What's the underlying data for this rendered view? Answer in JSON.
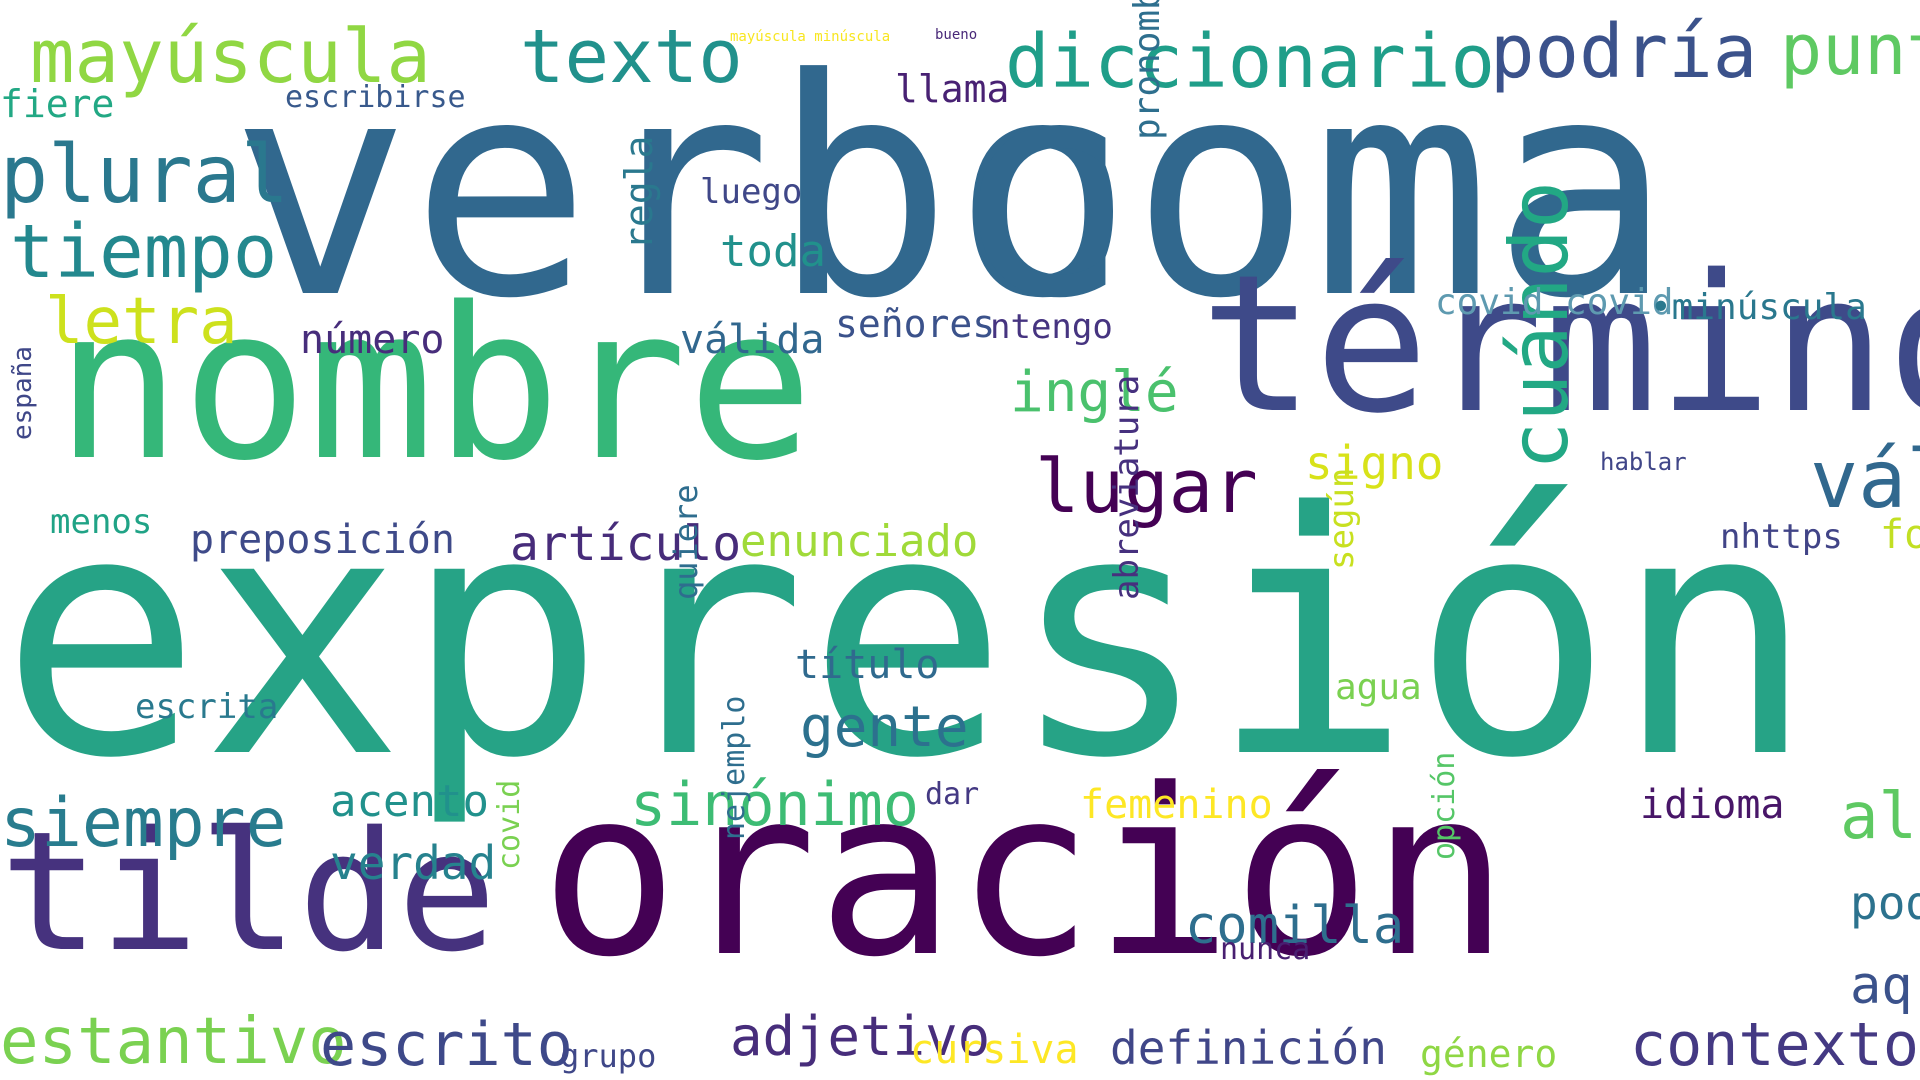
{
  "cloud": {
    "words": [
      {
        "text": "verbo",
        "color": "#31688e"
      },
      {
        "text": "coma",
        "color": "#31688e"
      },
      {
        "text": "nombre",
        "color": "#35b779"
      },
      {
        "text": "término",
        "color": "#3e4a89"
      },
      {
        "text": "expresión",
        "color": "#26a386"
      },
      {
        "text": "oración",
        "color": "#440154"
      },
      {
        "text": "tilde",
        "color": "#46327e"
      },
      {
        "text": "mayúscula",
        "color": "#90d743"
      },
      {
        "text": "texto",
        "color": "#21918c"
      },
      {
        "text": "diccionario",
        "color": "#1f9e89"
      },
      {
        "text": "podría",
        "color": "#3b528b"
      },
      {
        "text": "punt",
        "color": "#5ec962"
      },
      {
        "text": "plural",
        "color": "#2a788e"
      },
      {
        "text": "tiempo",
        "color": "#23888e"
      },
      {
        "text": "letra",
        "color": "#cde11d"
      },
      {
        "text": "lugar",
        "color": "#440154"
      },
      {
        "text": "váli",
        "color": "#31688e"
      },
      {
        "text": "inglé",
        "color": "#4ac16d"
      },
      {
        "text": "signo",
        "color": "#d8e219"
      },
      {
        "text": "cuándo",
        "color": "#22a884"
      },
      {
        "text": "siempre",
        "color": "#287c8e"
      },
      {
        "text": "sinónimo",
        "color": "#3dbc74"
      },
      {
        "text": "estantivo",
        "color": "#7ad151"
      },
      {
        "text": "escrito",
        "color": "#3e4989"
      },
      {
        "text": "adjetivo",
        "color": "#472d7b"
      },
      {
        "text": "contexto",
        "color": "#443983"
      },
      {
        "text": "definición",
        "color": "#404688"
      },
      {
        "text": "artículo",
        "color": "#472c7a"
      },
      {
        "text": "enunciado",
        "color": "#a0da39"
      },
      {
        "text": "preposición",
        "color": "#3e4a89"
      },
      {
        "text": "gente",
        "color": "#2c718e"
      },
      {
        "text": "acento",
        "color": "#21918c"
      },
      {
        "text": "verdad",
        "color": "#26828e"
      },
      {
        "text": "femenino",
        "color": "#fde725"
      },
      {
        "text": "idioma",
        "color": "#481668"
      },
      {
        "text": "comilla",
        "color": "#2e6e8e"
      },
      {
        "text": "alg",
        "color": "#5ec962"
      },
      {
        "text": "aq",
        "color": "#3b528b"
      },
      {
        "text": "pod",
        "color": "#2c728e"
      },
      {
        "text": "género",
        "color": "#8fd744"
      },
      {
        "text": "cursiva",
        "color": "#fde725"
      },
      {
        "text": "grupo",
        "color": "#3f4788"
      },
      {
        "text": "título",
        "color": "#306a8e"
      },
      {
        "text": "escrita",
        "color": "#29798e"
      },
      {
        "text": "agua",
        "color": "#7ad151"
      },
      {
        "text": "número",
        "color": "#472d7b"
      },
      {
        "text": "válida",
        "color": "#31678e"
      },
      {
        "text": "señores",
        "color": "#3b528b"
      },
      {
        "text": "ntengo",
        "color": "#463480"
      },
      {
        "text": "llama",
        "color": "#482173"
      },
      {
        "text": "luego",
        "color": "#3f4788"
      },
      {
        "text": "toda",
        "color": "#21918c"
      },
      {
        "text": "regla",
        "color": "#2a788e"
      },
      {
        "text": "covid covid",
        "color": "#5e9ab0"
      },
      {
        "text": "•minúscula",
        "color": "#2a788e"
      },
      {
        "text": "pronombre",
        "color": "#2e6f8e"
      },
      {
        "text": "menos",
        "color": "#20a386"
      },
      {
        "text": "nhttps",
        "color": "#414487"
      },
      {
        "text": "fo",
        "color": "#c2df23"
      },
      {
        "text": "abreviatura",
        "color": "#46307e"
      },
      {
        "text": "según",
        "color": "#c8e020"
      },
      {
        "text": "quiere",
        "color": "#2e6d8e"
      },
      {
        "text": "nejemplo",
        "color": "#2e6e8e"
      },
      {
        "text": "opción",
        "color": "#55c667"
      },
      {
        "text": "covid",
        "color": "#7ad151"
      },
      {
        "text": "escribirse",
        "color": "#38598c"
      },
      {
        "text": "españa",
        "color": "#3f4788"
      },
      {
        "text": "hablar",
        "color": "#404688"
      },
      {
        "text": "dar",
        "color": "#443983"
      },
      {
        "text": "nunca",
        "color": "#481f70"
      },
      {
        "text": "fiere",
        "color": "#22a884"
      },
      {
        "text": "mayúscula minúscula",
        "color": "#f8e621"
      },
      {
        "text": "bueno",
        "color": "#482878"
      }
    ]
  }
}
